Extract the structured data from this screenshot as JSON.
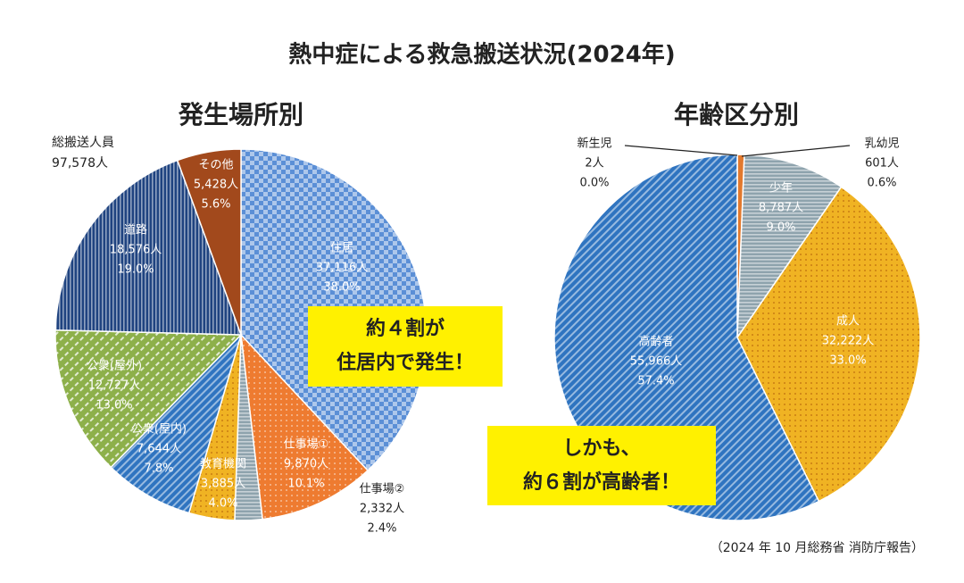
{
  "title": "熱中症による救急搬送状況(2024年)",
  "source": "（2024 年 10 月総務省 消防庁報告）",
  "chart_data": [
    {
      "type": "pie",
      "title": "発生場所別",
      "annotation": [
        "総搬送人員",
        "97,578人"
      ],
      "categories": [
        "住居",
        "仕事場①",
        "仕事場②",
        "教育機関",
        "公衆(屋内)",
        "公衆(屋外)",
        "道路",
        "その他"
      ],
      "values": [
        37116,
        9870,
        2332,
        3885,
        7644,
        12727,
        18576,
        5428
      ],
      "value_labels": [
        "37,116人",
        "9,870人",
        "2,332人",
        "3,885人",
        "7,644人",
        "12,727人",
        "18,576人",
        "5,428人"
      ],
      "percents": [
        38.0,
        10.1,
        2.4,
        4.0,
        7.8,
        13.0,
        19.0,
        5.6
      ],
      "percent_labels": [
        "38.0%",
        "10.1%",
        "2.4%",
        "4.0%",
        "7.8%",
        "13.0%",
        "19.0%",
        "5.6%"
      ],
      "colors": [
        "#5b8fd6",
        "#ee7b30",
        "#8ea3ad",
        "#f0b323",
        "#2f74c0",
        "#8db04a",
        "#1f4380",
        "#a2491c"
      ],
      "patterns": [
        "checker",
        "dots",
        "hlines",
        "dots",
        "diag",
        "dashes",
        "vlines",
        "none"
      ],
      "callout": [
        "約４割が",
        "住居内で発生！"
      ]
    },
    {
      "type": "pie",
      "title": "年齢区分別",
      "categories": [
        "新生児",
        "乳幼児",
        "少年",
        "成人",
        "高齢者"
      ],
      "values": [
        2,
        601,
        8787,
        32222,
        55966
      ],
      "value_labels": [
        "2人",
        "601人",
        "8,787人",
        "32,222人",
        "55,966人"
      ],
      "percents": [
        0.0,
        0.6,
        9.0,
        33.0,
        57.4
      ],
      "percent_labels": [
        "0.0%",
        "0.6%",
        "9.0%",
        "33.0%",
        "57.4%"
      ],
      "colors": [
        "#c0392b",
        "#e2792e",
        "#8ea3ad",
        "#f0b323",
        "#2f74c0"
      ],
      "patterns": [
        "none",
        "none",
        "hlines",
        "dots",
        "diag"
      ],
      "callout": [
        "しかも、",
        "約６割が高齢者！"
      ]
    }
  ]
}
